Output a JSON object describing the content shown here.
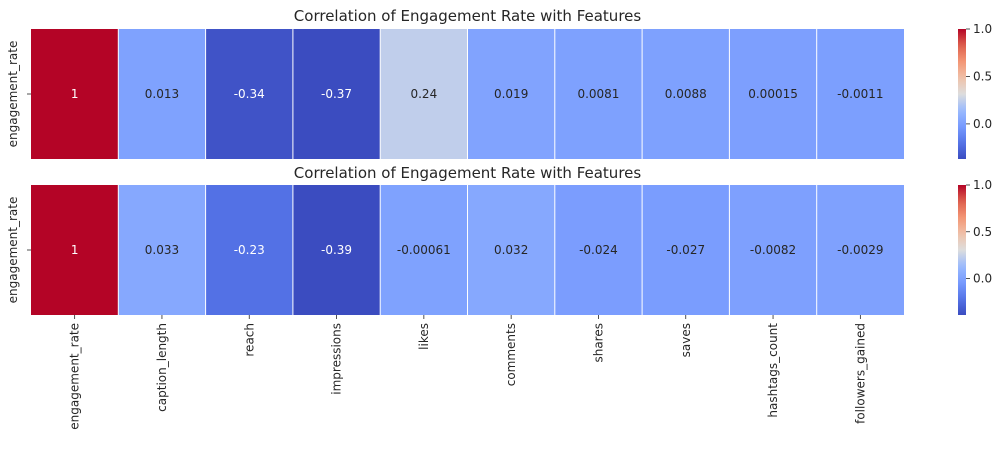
{
  "chart_data": [
    {
      "type": "heatmap",
      "title": "Correlation of Engagement Rate with Features",
      "row_label": "engagement_rate",
      "columns": [
        "engagement_rate",
        "caption_length",
        "reach",
        "impressions",
        "likes",
        "comments",
        "shares",
        "saves",
        "hashtags_count",
        "followers_gained"
      ],
      "values": [
        1,
        0.013,
        -0.34,
        -0.37,
        0.24,
        0.019,
        0.0081,
        0.0088,
        0.00015,
        -0.0011
      ],
      "value_labels": [
        "1",
        "0.013",
        "-0.34",
        "-0.37",
        "0.24",
        "0.019",
        "0.0081",
        "0.0088",
        "0.00015",
        "-0.0011"
      ],
      "colormap": "coolwarm",
      "vmin": -0.37,
      "vmax": 1.0,
      "colorbar_ticks": [
        {
          "value": 1.0,
          "label": "1.0"
        },
        {
          "value": 0.5,
          "label": "0.5"
        },
        {
          "value": 0.0,
          "label": "0.0"
        }
      ],
      "show_xticklabels": false
    },
    {
      "type": "heatmap",
      "title": "Correlation of Engagement Rate with Features",
      "row_label": "engagement_rate",
      "columns": [
        "engagement_rate",
        "caption_length",
        "reach",
        "impressions",
        "likes",
        "comments",
        "shares",
        "saves",
        "hashtags_count",
        "followers_gained"
      ],
      "values": [
        1,
        0.033,
        -0.23,
        -0.39,
        -0.00061,
        0.032,
        -0.024,
        -0.027,
        -0.0082,
        -0.0029
      ],
      "value_labels": [
        "1",
        "0.033",
        "-0.23",
        "-0.39",
        "-0.00061",
        "0.032",
        "-0.024",
        "-0.027",
        "-0.0082",
        "-0.0029"
      ],
      "colormap": "coolwarm",
      "vmin": -0.39,
      "vmax": 1.0,
      "colorbar_ticks": [
        {
          "value": 1.0,
          "label": "1.0"
        },
        {
          "value": 0.5,
          "label": "0.5"
        },
        {
          "value": 0.0,
          "label": "0.0"
        }
      ],
      "show_xticklabels": true
    }
  ]
}
